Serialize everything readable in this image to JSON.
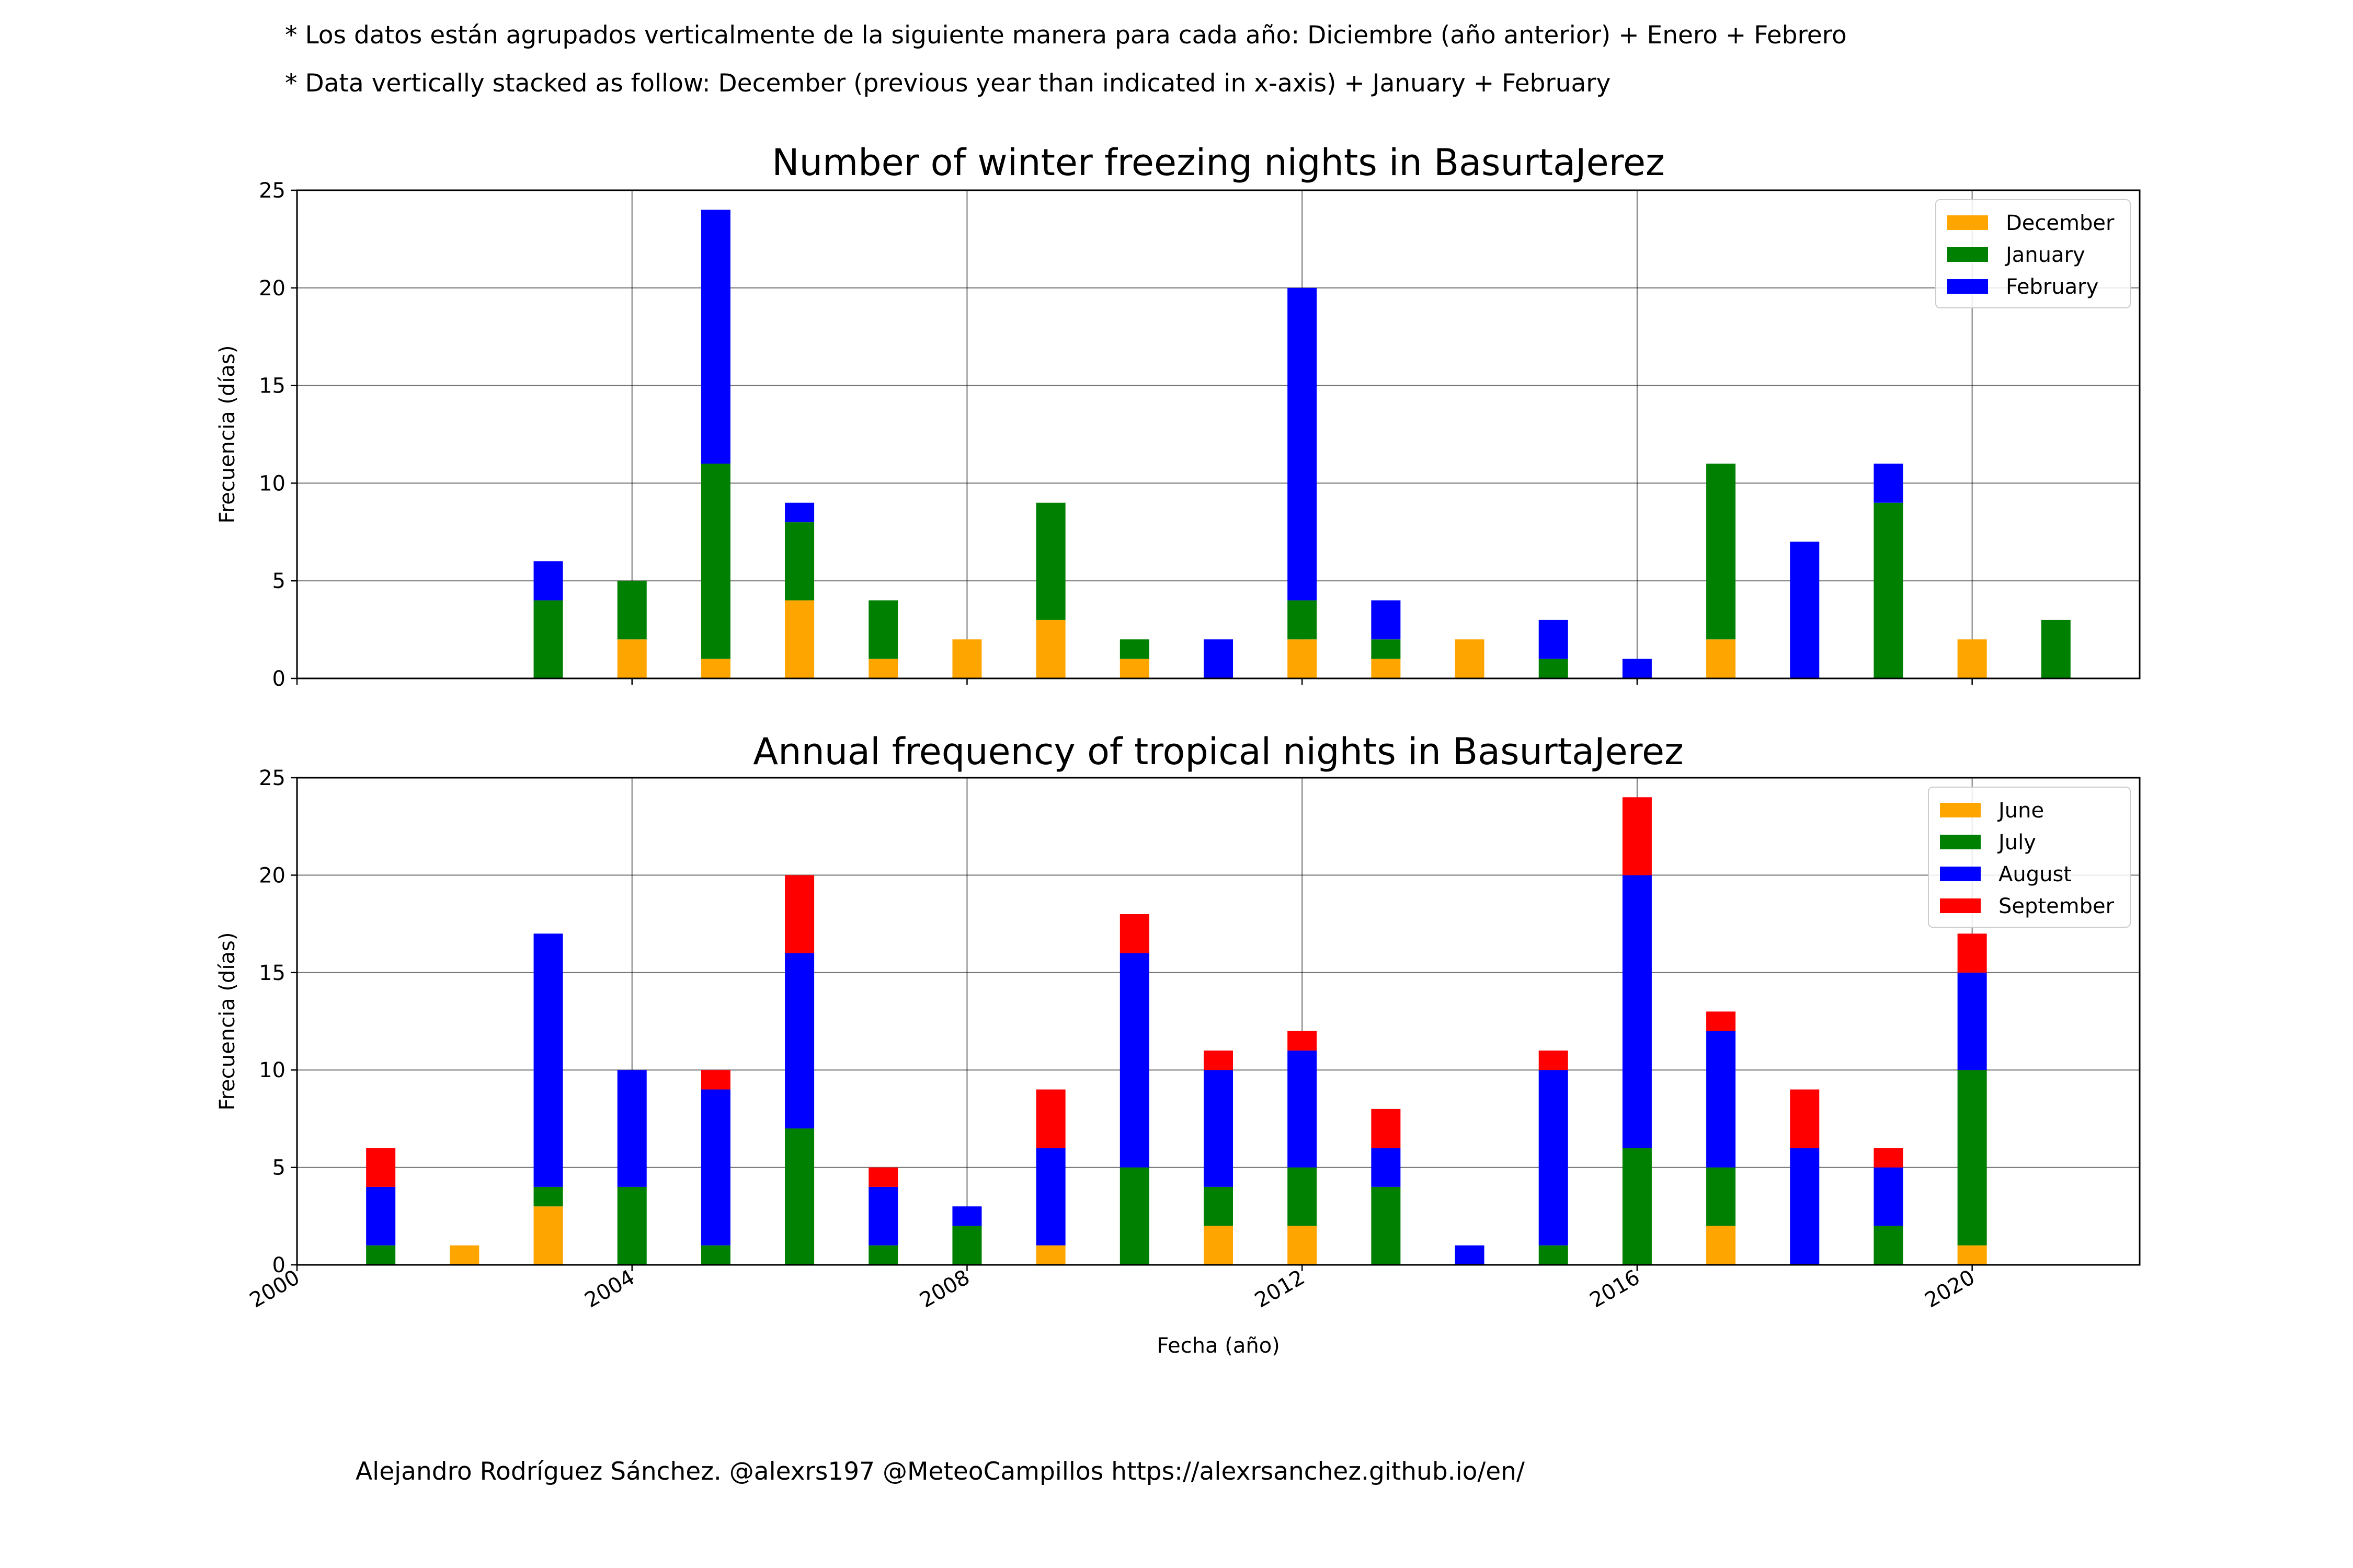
{
  "header_notes": [
    "* Los datos están agrupados verticalmente de la siguiente manera para cada año: Diciembre (año anterior) + Enero  + Febrero",
    "* Data vertically stacked as follow: December (previous year than indicated in x-axis) + January  + February"
  ],
  "credit": "Alejandro Rodríguez Sánchez. @alexrs197 @MeteoCampillos   https://alexrsanchez.github.io/en/",
  "chart_data": [
    {
      "type": "bar",
      "stacked": true,
      "title": "Number of winter freezing nights in BasurtaJerez",
      "ylabel": "Frecuencia (días)",
      "xlabel": "",
      "xlim": [
        2000,
        2022
      ],
      "ylim": [
        0,
        25
      ],
      "yticks": [
        0,
        5,
        10,
        15,
        20,
        25
      ],
      "xticks": [
        2000,
        2004,
        2008,
        2012,
        2016,
        2020
      ],
      "show_xtick_labels": false,
      "grid": true,
      "legend_position": "top-right",
      "x": [
        2001,
        2002,
        2003,
        2004,
        2005,
        2006,
        2007,
        2008,
        2009,
        2010,
        2011,
        2012,
        2013,
        2014,
        2015,
        2016,
        2017,
        2018,
        2019,
        2020,
        2021
      ],
      "series": [
        {
          "name": "December",
          "color": "#ffa500",
          "values": [
            0,
            0,
            0,
            2,
            1,
            4,
            1,
            2,
            3,
            1,
            0,
            2,
            1,
            2,
            0,
            0,
            2,
            0,
            0,
            2,
            0
          ]
        },
        {
          "name": "January",
          "color": "#008000",
          "values": [
            0,
            0,
            4,
            3,
            10,
            4,
            3,
            0,
            6,
            1,
            0,
            2,
            1,
            0,
            1,
            0,
            9,
            0,
            9,
            0,
            3
          ]
        },
        {
          "name": "February",
          "color": "#0000ff",
          "values": [
            0,
            0,
            2,
            0,
            13,
            1,
            0,
            0,
            0,
            0,
            2,
            16,
            2,
            0,
            2,
            1,
            0,
            7,
            2,
            0,
            0
          ]
        }
      ]
    },
    {
      "type": "bar",
      "stacked": true,
      "title": "Annual frequency of tropical nights in BasurtaJerez",
      "ylabel": "Frecuencia (días)",
      "xlabel": "Fecha (año)",
      "xlim": [
        2000,
        2022
      ],
      "ylim": [
        0,
        25
      ],
      "yticks": [
        0,
        5,
        10,
        15,
        20,
        25
      ],
      "xticks": [
        2000,
        2004,
        2008,
        2012,
        2016,
        2020
      ],
      "show_xtick_labels": true,
      "grid": true,
      "legend_position": "top-right",
      "x": [
        2001,
        2002,
        2003,
        2004,
        2005,
        2006,
        2007,
        2008,
        2009,
        2010,
        2011,
        2012,
        2013,
        2014,
        2015,
        2016,
        2017,
        2018,
        2019,
        2020,
        2021
      ],
      "series": [
        {
          "name": "June",
          "color": "#ffa500",
          "values": [
            0,
            1,
            3,
            0,
            0,
            0,
            0,
            0,
            1,
            0,
            2,
            2,
            0,
            0,
            0,
            0,
            2,
            0,
            0,
            1,
            0
          ]
        },
        {
          "name": "July",
          "color": "#008000",
          "values": [
            1,
            0,
            1,
            4,
            1,
            7,
            1,
            2,
            0,
            5,
            2,
            3,
            4,
            0,
            1,
            6,
            3,
            0,
            2,
            9,
            0
          ]
        },
        {
          "name": "August",
          "color": "#0000ff",
          "values": [
            3,
            0,
            13,
            6,
            8,
            9,
            3,
            1,
            5,
            11,
            6,
            6,
            2,
            1,
            9,
            14,
            7,
            6,
            3,
            5,
            0
          ]
        },
        {
          "name": "September",
          "color": "#ff0000",
          "values": [
            2,
            0,
            0,
            0,
            1,
            4,
            1,
            0,
            3,
            2,
            1,
            1,
            2,
            0,
            1,
            4,
            1,
            3,
            1,
            2,
            0
          ]
        }
      ]
    }
  ]
}
